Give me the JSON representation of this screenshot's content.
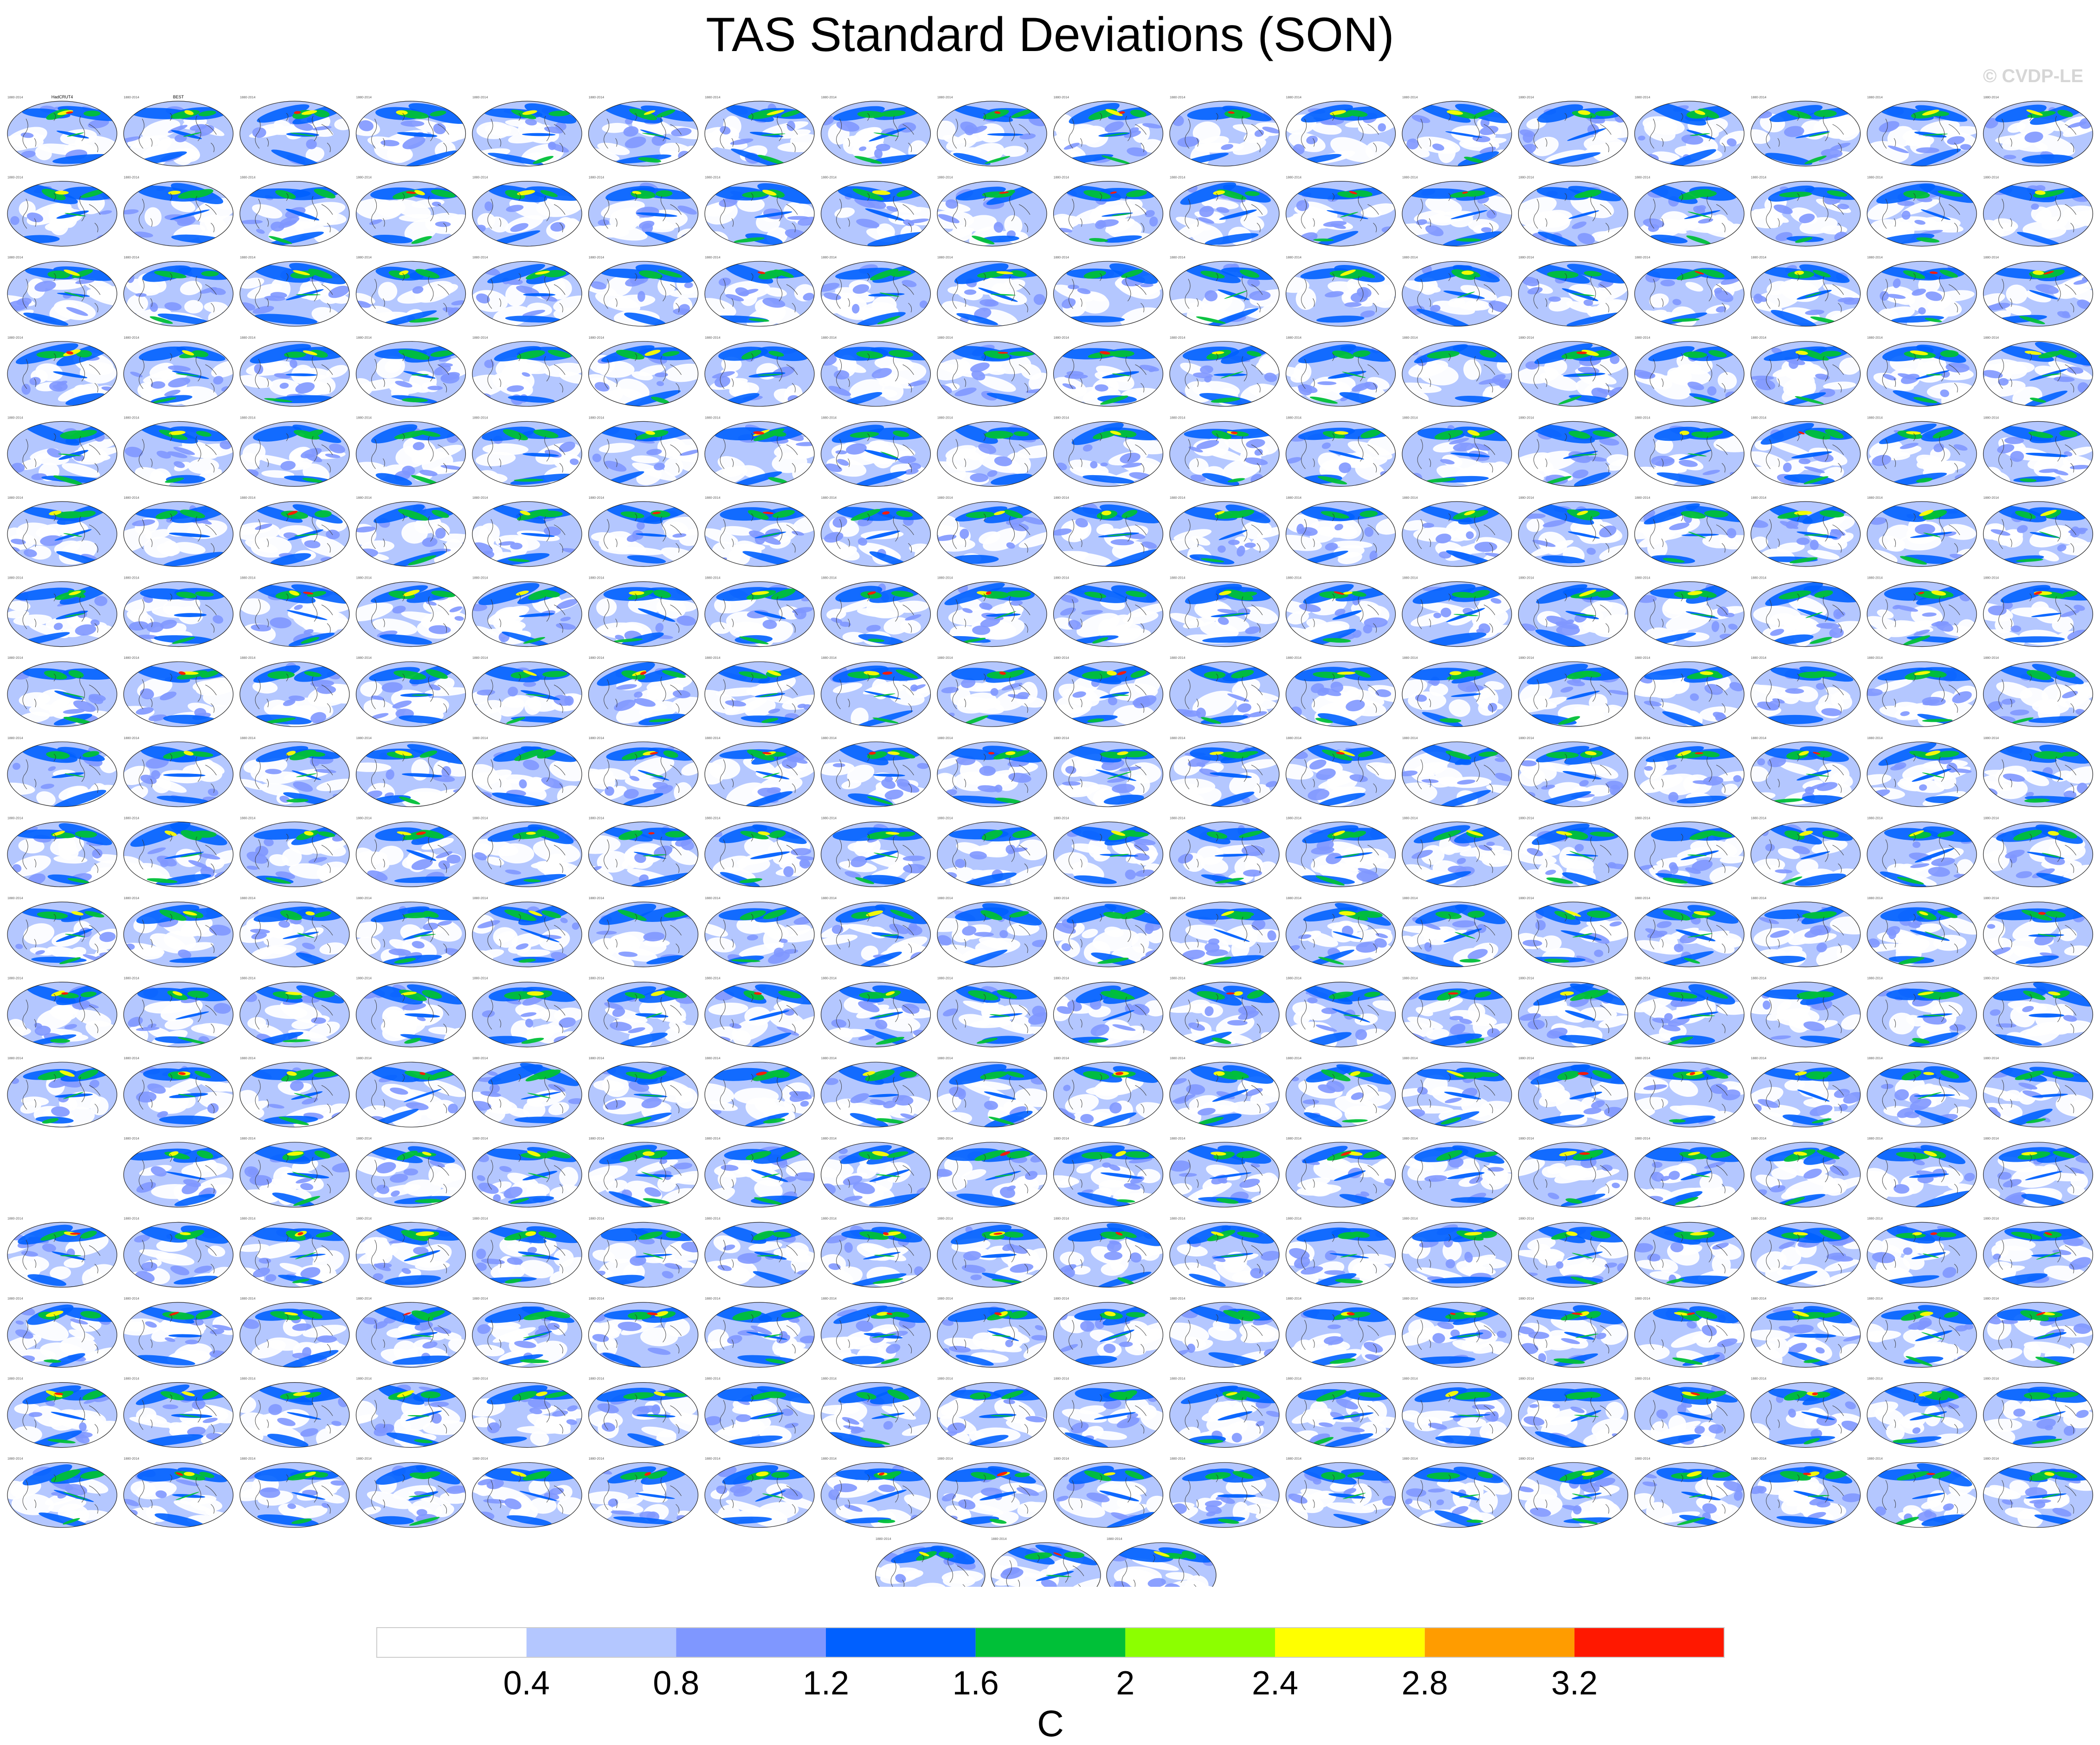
{
  "title": "TAS Standard Deviations (SON)",
  "watermark": "© CVDP-LE",
  "chart_data": {
    "type": "map-panel-grid",
    "projection": "Robinson (global)",
    "period": "1880-2014",
    "grid": {
      "rows": 19,
      "cols": 18,
      "last_row_panels": 3
    },
    "first_panels": [
      "HadCRUT4",
      "BEST"
    ],
    "colorbar": {
      "unit": "C",
      "tick_labels": [
        "0.4",
        "0.8",
        "1.2",
        "1.6",
        "2",
        "2.4",
        "2.8",
        "3.2"
      ],
      "levels": [
        0.4,
        0.8,
        1.2,
        1.6,
        2.0,
        2.4,
        2.8,
        3.2
      ],
      "colors": [
        "#ffffff",
        "#b4c7ff",
        "#7f97ff",
        "#0060ff",
        "#00c038",
        "#8cff00",
        "#ffff00",
        "#ff9c00",
        "#ff1800"
      ]
    }
  },
  "colors": {
    "ocean_low": "#ffffff",
    "field_light": "#b4c7ff",
    "field_mid": "#7f97ff",
    "field_blue": "#0060ff",
    "field_green": "#00c038",
    "field_lime": "#8cff00",
    "field_yellow": "#ffff00",
    "field_orange": "#ff9c00",
    "field_red": "#ff1800",
    "coast": "#333333"
  }
}
